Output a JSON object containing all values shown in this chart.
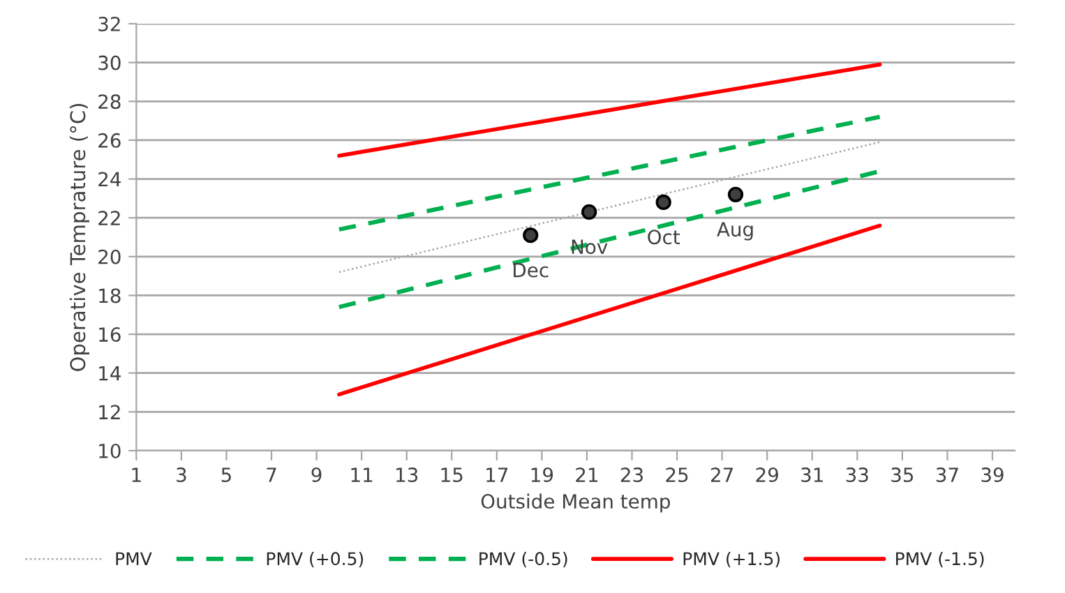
{
  "chart_data": {
    "type": "line",
    "xlabel": "Outside Mean temp",
    "ylabel": "Operative Temprature (°C)",
    "xlim": [
      1,
      40
    ],
    "xticks": [
      1,
      3,
      5,
      7,
      9,
      11,
      13,
      15,
      17,
      19,
      21,
      23,
      25,
      27,
      29,
      31,
      33,
      35,
      37,
      39
    ],
    "ylim": [
      10,
      32
    ],
    "yticks": [
      10,
      12,
      14,
      16,
      18,
      20,
      22,
      24,
      26,
      28,
      30,
      32
    ],
    "grid": "y",
    "legend": "bottom",
    "series": [
      {
        "name": "PMV",
        "color": "#a6a6a6",
        "line_style": "dotted",
        "x": [
          10,
          34
        ],
        "values": [
          19.2,
          25.9
        ]
      },
      {
        "name": "PMV (+0.5)",
        "color": "#00b050",
        "line_style": "dashed",
        "x": [
          10,
          34
        ],
        "values": [
          21.4,
          27.2
        ]
      },
      {
        "name": "PMV (-0.5)",
        "color": "#00b050",
        "line_style": "dashed",
        "x": [
          10,
          34
        ],
        "values": [
          17.4,
          24.4
        ]
      },
      {
        "name": "PMV (+1.5)",
        "color": "#ff0000",
        "line_style": "solid",
        "x": [
          10,
          34
        ],
        "values": [
          25.2,
          29.9
        ]
      },
      {
        "name": "PMV (-1.5)",
        "color": "#ff0000",
        "line_style": "solid",
        "x": [
          10,
          34
        ],
        "values": [
          12.9,
          21.6
        ]
      },
      {
        "type": "scatter",
        "color": "#404040",
        "marker": "circle",
        "x": [
          18.5,
          21.1,
          24.4,
          27.6
        ],
        "values": [
          21.1,
          22.3,
          22.8,
          23.2
        ]
      }
    ],
    "annotations": [
      {
        "text": "Dec",
        "x": 18.5,
        "y": 21.1
      },
      {
        "text": "Nov",
        "x": 21.1,
        "y": 22.3
      },
      {
        "text": "Oct",
        "x": 24.4,
        "y": 22.8
      },
      {
        "text": "Aug",
        "x": 27.6,
        "y": 23.2
      }
    ]
  }
}
